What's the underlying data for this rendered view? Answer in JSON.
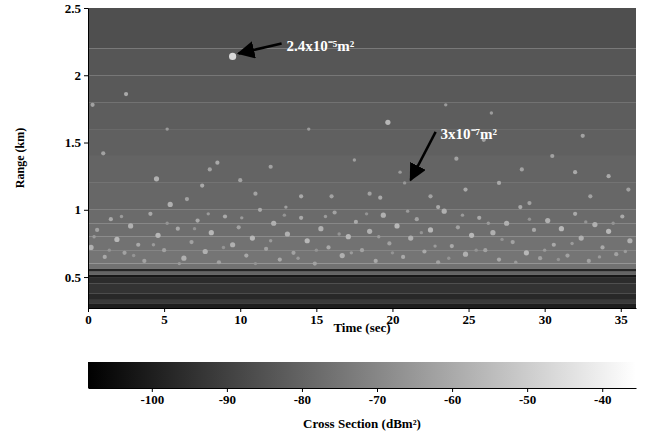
{
  "chart_data": {
    "type": "heatmap",
    "xlabel": "Time (sec)",
    "ylabel": "Range (km)",
    "xlim": [
      0,
      36
    ],
    "xticks": [
      0,
      5,
      10,
      15,
      20,
      25,
      30,
      35
    ],
    "ylim": [
      0.27,
      2.5
    ],
    "yticks": [
      0.5,
      1,
      1.5,
      2,
      2.5
    ],
    "colorbar": {
      "label": "Cross Section (dBm²)",
      "range": [
        -108.5,
        -35.5
      ],
      "ticks": [
        -100,
        -90,
        -80,
        -70,
        -60,
        -50,
        -40
      ]
    },
    "background": {
      "range_edges": [
        0.27,
        0.3,
        0.33,
        0.38,
        0.45,
        0.5,
        0.52,
        0.54,
        0.56,
        0.6,
        0.7,
        0.8,
        0.9,
        1.0,
        1.2,
        1.4,
        1.6,
        1.8,
        2.0,
        2.2,
        2.5
      ],
      "values": [
        -100,
        -92,
        -97,
        -94,
        -96,
        -102,
        -80,
        -98,
        -76,
        -75,
        -76,
        -77,
        -78,
        -79,
        -80,
        -81,
        -82,
        -83,
        -84,
        -86
      ]
    },
    "targets": {
      "x": [
        0.3,
        1,
        2.5,
        4.5,
        5.2,
        6.5,
        7.5,
        8,
        8.5,
        9.5,
        10,
        11,
        12,
        13,
        14,
        14.5,
        16,
        17.5,
        18.5,
        19.2,
        19.7,
        20.5,
        20.8,
        21.5,
        22.5,
        23,
        23.5,
        24.2,
        24.8,
        26,
        26.5,
        27,
        28.5,
        29,
        30.5,
        32,
        32.5,
        33,
        34.2,
        35.5,
        0.2,
        0.6,
        1.1,
        1.5,
        1.9,
        2.4,
        2.8,
        3.3,
        3.7,
        4.1,
        4.6,
        5.0,
        5.4,
        5.9,
        6.3,
        6.8,
        7.2,
        7.7,
        8.1,
        8.6,
        9.0,
        9.5,
        9.9,
        10.4,
        10.8,
        11.3,
        11.7,
        12.2,
        12.6,
        13.1,
        13.5,
        14.0,
        14.4,
        14.9,
        15.3,
        15.8,
        16.2,
        16.7,
        17.1,
        17.6,
        18.0,
        18.5,
        18.9,
        19.4,
        19.8,
        20.3,
        20.7,
        21.2,
        21.6,
        22.1,
        22.5,
        23.0,
        23.4,
        23.9,
        24.3,
        24.8,
        25.2,
        25.7,
        26.1,
        26.6,
        27.0,
        27.5,
        27.9,
        28.4,
        28.8,
        29.3,
        29.7,
        30.2,
        30.6,
        31.1,
        31.5,
        32.0,
        32.4,
        32.9,
        33.3,
        33.8,
        34.2,
        34.7,
        35.1,
        35.6,
        0.4,
        1.4,
        2.2,
        3.0,
        4.3,
        5.2,
        6.0,
        7.0,
        7.9,
        8.9,
        10.1,
        11.0,
        12.0,
        12.9,
        13.8,
        15.0,
        15.6,
        16.5,
        17.3,
        18.3,
        19.1,
        20.0,
        21.0,
        21.9,
        22.8,
        23.7,
        24.6,
        25.5,
        26.3,
        27.2,
        28.1,
        29.0,
        30.0,
        30.9,
        31.8,
        32.7,
        33.6,
        34.5,
        35.3
      ],
      "y": [
        1.78,
        1.42,
        1.86,
        1.23,
        1.6,
        1.08,
        1.18,
        1.3,
        1.35,
        2.14,
        1.22,
        1.12,
        1.32,
        1.02,
        1.1,
        1.6,
        1.1,
        1.37,
        1.12,
        1.09,
        1.65,
        1.28,
        1.2,
        1.32,
        1.1,
        1.02,
        1.78,
        1.38,
        1.15,
        1.52,
        1.72,
        1.2,
        1.3,
        1.05,
        1.4,
        1.28,
        1.55,
        1.1,
        1.25,
        1.15,
        0.72,
        0.85,
        0.65,
        0.93,
        0.78,
        0.68,
        0.88,
        0.74,
        0.62,
        0.97,
        0.81,
        0.7,
        1.04,
        0.86,
        0.64,
        0.76,
        0.92,
        0.69,
        0.83,
        0.61,
        0.95,
        0.74,
        0.87,
        0.66,
        0.79,
        1.0,
        0.71,
        0.9,
        0.63,
        0.82,
        0.68,
        0.94,
        0.77,
        0.6,
        0.86,
        0.72,
        0.98,
        0.66,
        0.8,
        0.91,
        0.7,
        0.84,
        0.62,
        0.96,
        0.75,
        0.88,
        0.65,
        0.79,
        0.93,
        0.69,
        0.85,
        0.61,
        0.99,
        0.73,
        0.87,
        0.67,
        0.81,
        0.94,
        0.7,
        0.83,
        0.63,
        0.9,
        0.76,
        1.02,
        0.68,
        0.85,
        0.64,
        0.92,
        0.74,
        0.86,
        0.66,
        0.97,
        0.79,
        0.62,
        0.89,
        0.72,
        0.84,
        0.67,
        0.95,
        0.77,
        0.8,
        0.7,
        0.95,
        0.66,
        0.74,
        0.9,
        0.6,
        0.86,
        0.97,
        0.72,
        0.94,
        0.6,
        0.77,
        0.96,
        0.64,
        0.7,
        0.95,
        0.82,
        0.68,
        0.97,
        0.8,
        0.68,
        0.99,
        0.83,
        0.73,
        0.64,
        0.96,
        0.7,
        0.9,
        0.78,
        0.61,
        0.93,
        0.7,
        0.63,
        0.75,
        0.91,
        0.65,
        0.9,
        0.69
      ],
      "values": [
        -62,
        -62,
        -60,
        -58,
        -64,
        -62,
        -60,
        -62,
        -60,
        -46,
        -62,
        -62,
        -62,
        -63,
        -60,
        -64,
        -62,
        -63,
        -62,
        -60,
        -56,
        -64,
        -65,
        -60,
        -62,
        -60,
        -64,
        -62,
        -60,
        -62,
        -64,
        -60,
        -62,
        -62,
        -62,
        -60,
        -62,
        -62,
        -60,
        -62,
        -58,
        -62,
        -60,
        -60,
        -56,
        -62,
        -58,
        -60,
        -62,
        -60,
        -56,
        -62,
        -58,
        -60,
        -58,
        -62,
        -60,
        -58,
        -56,
        -62,
        -60,
        -58,
        -62,
        -60,
        -56,
        -60,
        -62,
        -58,
        -60,
        -58,
        -62,
        -60,
        -56,
        -62,
        -58,
        -60,
        -62,
        -58,
        -56,
        -60,
        -62,
        -58,
        -60,
        -58,
        -62,
        -56,
        -60,
        -58,
        -62,
        -60,
        -56,
        -62,
        -58,
        -60,
        -62,
        -58,
        -56,
        -60,
        -62,
        -58,
        -60,
        -58,
        -62,
        -60,
        -56,
        -60,
        -62,
        -58,
        -60,
        -56,
        -62,
        -60,
        -58,
        -62,
        -58,
        -60,
        -56,
        -62,
        -60,
        -58,
        -64,
        -66,
        -64,
        -66,
        -64,
        -66,
        -64,
        -66,
        -64,
        -66,
        -64,
        -66,
        -64,
        -66,
        -64,
        -66,
        -64,
        -66,
        -64,
        -66,
        -64,
        -66,
        -64,
        -66,
        -64,
        -66,
        -64,
        -66,
        -64,
        -66,
        -64,
        -66,
        -64,
        -66,
        -64,
        -66,
        -64,
        -66,
        -64
      ]
    },
    "annotations": [
      {
        "text": "2.4x10⁻⁵m²",
        "x": 9.5,
        "y": 2.14
      },
      {
        "text": "3x10⁻⁷m²",
        "x": 20.8,
        "y": 1.2
      }
    ]
  }
}
